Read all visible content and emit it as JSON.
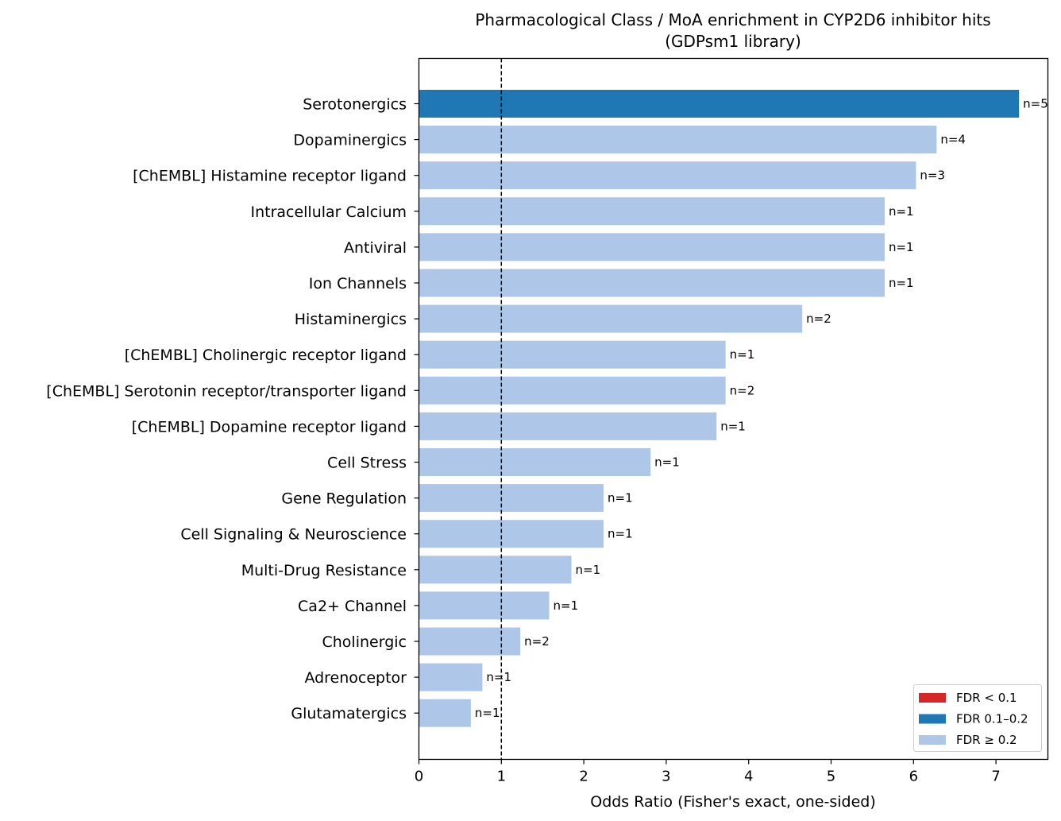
{
  "chart_data": {
    "type": "bar",
    "orientation": "horizontal",
    "title": "Pharmacological Class / MoA enrichment in CYP2D6 inhibitor hits",
    "subtitle": "(GDPsm1 library)",
    "xlabel": "Odds Ratio (Fisher's exact, one-sided)",
    "ylabel": "",
    "xlim": [
      0,
      7.63
    ],
    "xticks": [
      0,
      1,
      2,
      3,
      4,
      5,
      6,
      7
    ],
    "reference_line": {
      "x": 1,
      "style": "dashed"
    },
    "grid": false,
    "legend_position": "lower right",
    "legend": [
      {
        "label": "FDR < 0.1",
        "color": "#d62728"
      },
      {
        "label": "FDR 0.1–0.2",
        "color": "#1f77b4"
      },
      {
        "label": "FDR ≥ 0.2",
        "color": "#aec7e8"
      }
    ],
    "bars": [
      {
        "category": "Serotonergics",
        "value": 7.28,
        "label": "n=5",
        "color": "#1f77b4"
      },
      {
        "category": "Dopaminergics",
        "value": 6.28,
        "label": "n=4",
        "color": "#aec7e8"
      },
      {
        "category": "[ChEMBL] Histamine receptor ligand",
        "value": 6.03,
        "label": "n=3",
        "color": "#aec7e8"
      },
      {
        "category": "Intracellular Calcium",
        "value": 5.65,
        "label": "n=1",
        "color": "#aec7e8"
      },
      {
        "category": "Antiviral",
        "value": 5.65,
        "label": "n=1",
        "color": "#aec7e8"
      },
      {
        "category": "Ion Channels",
        "value": 5.65,
        "label": "n=1",
        "color": "#aec7e8"
      },
      {
        "category": "Histaminergics",
        "value": 4.65,
        "label": "n=2",
        "color": "#aec7e8"
      },
      {
        "category": "[ChEMBL] Cholinergic receptor ligand",
        "value": 3.72,
        "label": "n=1",
        "color": "#aec7e8"
      },
      {
        "category": "[ChEMBL] Serotonin receptor/transporter ligand",
        "value": 3.72,
        "label": "n=2",
        "color": "#aec7e8"
      },
      {
        "category": "[ChEMBL] Dopamine receptor ligand",
        "value": 3.61,
        "label": "n=1",
        "color": "#aec7e8"
      },
      {
        "category": "Cell Stress",
        "value": 2.81,
        "label": "n=1",
        "color": "#aec7e8"
      },
      {
        "category": "Gene Regulation",
        "value": 2.24,
        "label": "n=1",
        "color": "#aec7e8"
      },
      {
        "category": "Cell Signaling & Neuroscience",
        "value": 2.24,
        "label": "n=1",
        "color": "#aec7e8"
      },
      {
        "category": "Multi-Drug Resistance",
        "value": 1.85,
        "label": "n=1",
        "color": "#aec7e8"
      },
      {
        "category": "Ca2+ Channel",
        "value": 1.58,
        "label": "n=1",
        "color": "#aec7e8"
      },
      {
        "category": "Cholinergic",
        "value": 1.23,
        "label": "n=2",
        "color": "#aec7e8"
      },
      {
        "category": "Adrenoceptor",
        "value": 0.77,
        "label": "n=1",
        "color": "#aec7e8"
      },
      {
        "category": "Glutamatergics",
        "value": 0.63,
        "label": "n=1",
        "color": "#aec7e8"
      }
    ]
  }
}
